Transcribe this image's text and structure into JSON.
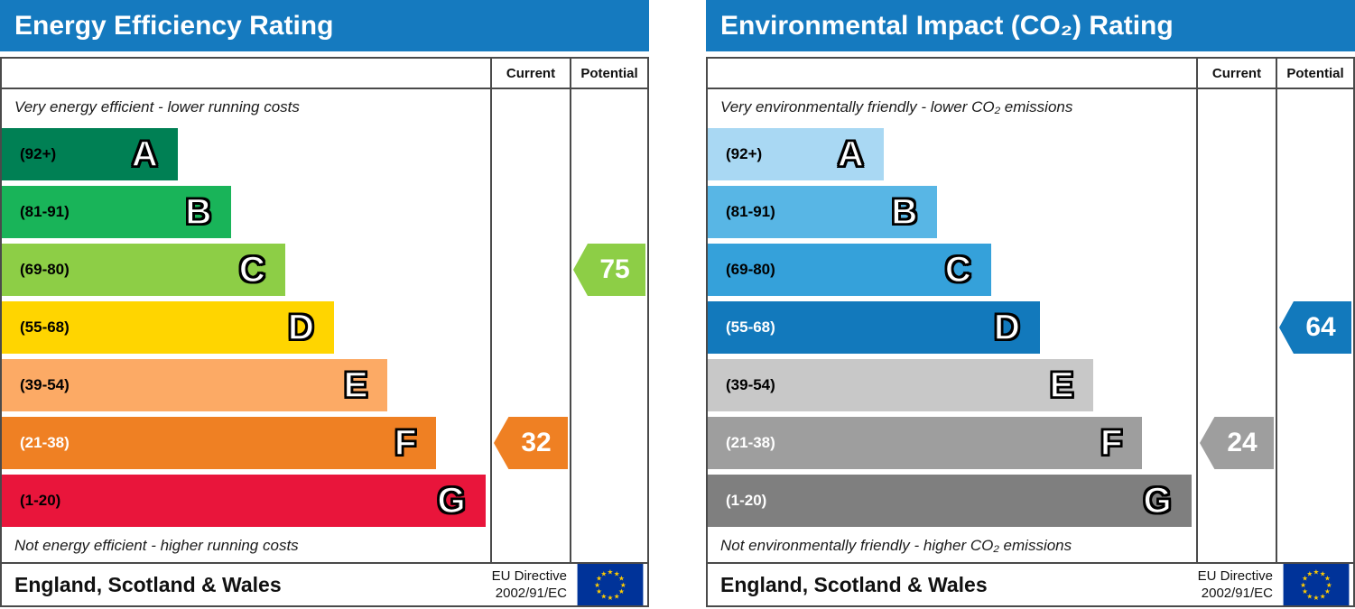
{
  "panels": [
    {
      "title": "Energy Efficiency Rating",
      "columns": {
        "current": "Current",
        "potential": "Potential"
      },
      "top_note": "Very energy efficient - lower running costs",
      "bottom_note": "Not energy efficient - higher running costs",
      "bands": [
        {
          "letter": "A",
          "range": "(92+)",
          "color": "#008054",
          "text": "#000000",
          "width": "36%"
        },
        {
          "letter": "B",
          "range": "(81-91)",
          "color": "#19b459",
          "text": "#000000",
          "width": "47%"
        },
        {
          "letter": "C",
          "range": "(69-80)",
          "color": "#8dce46",
          "text": "#000000",
          "width": "58%"
        },
        {
          "letter": "D",
          "range": "(55-68)",
          "color": "#ffd500",
          "text": "#000000",
          "width": "68%"
        },
        {
          "letter": "E",
          "range": "(39-54)",
          "color": "#fcaa65",
          "text": "#000000",
          "width": "79%"
        },
        {
          "letter": "F",
          "range": "(21-38)",
          "color": "#ef8023",
          "text": "#ffffff",
          "width": "89%"
        },
        {
          "letter": "G",
          "range": "(1-20)",
          "color": "#e9153b",
          "text": "#000000",
          "width": "99%"
        }
      ],
      "markers": {
        "current": {
          "value": "32",
          "row": 5,
          "color": "#ef8023"
        },
        "potential": {
          "value": "75",
          "row": 2,
          "color": "#8dce46"
        }
      },
      "footer": {
        "region": "England, Scotland & Wales",
        "directive_line1": "EU Directive",
        "directive_line2": "2002/91/EC"
      }
    },
    {
      "title": "Environmental Impact (CO₂) Rating",
      "columns": {
        "current": "Current",
        "potential": "Potential"
      },
      "top_note": "Very environmentally friendly - lower CO₂ emissions",
      "bottom_note": "Not environmentally friendly - higher CO₂ emissions",
      "bands": [
        {
          "letter": "A",
          "range": "(92+)",
          "color": "#a9d8f3",
          "text": "#000000",
          "width": "36%"
        },
        {
          "letter": "B",
          "range": "(81-91)",
          "color": "#58b6e5",
          "text": "#000000",
          "width": "47%"
        },
        {
          "letter": "C",
          "range": "(69-80)",
          "color": "#35a1da",
          "text": "#000000",
          "width": "58%"
        },
        {
          "letter": "D",
          "range": "(55-68)",
          "color": "#1279bc",
          "text": "#ffffff",
          "width": "68%"
        },
        {
          "letter": "E",
          "range": "(39-54)",
          "color": "#c8c8c8",
          "text": "#000000",
          "width": "79%"
        },
        {
          "letter": "F",
          "range": "(21-38)",
          "color": "#9e9e9e",
          "text": "#ffffff",
          "width": "89%"
        },
        {
          "letter": "G",
          "range": "(1-20)",
          "color": "#7f7f7f",
          "text": "#ffffff",
          "width": "99%"
        }
      ],
      "markers": {
        "current": {
          "value": "24",
          "row": 5,
          "color": "#9e9e9e"
        },
        "potential": {
          "value": "64",
          "row": 3,
          "color": "#1279bc"
        }
      },
      "footer": {
        "region": "England, Scotland & Wales",
        "directive_line1": "EU Directive",
        "directive_line2": "2002/91/EC"
      }
    }
  ],
  "theme": {
    "header_bg": "#157abf",
    "header_text": "#ffffff",
    "border": "#4a4a4a",
    "flag_bg": "#003399",
    "flag_star": "#ffcc00"
  },
  "chart_data": [
    {
      "type": "bar",
      "title": "Energy Efficiency Rating",
      "categories": [
        "A",
        "B",
        "C",
        "D",
        "E",
        "F",
        "G"
      ],
      "band_ranges": [
        "92+",
        "81-91",
        "69-80",
        "55-68",
        "39-54",
        "21-38",
        "1-20"
      ],
      "current": 32,
      "current_band": "F",
      "potential": 75,
      "potential_band": "C",
      "value_range": [
        1,
        100
      ],
      "annotations": [
        "Very energy efficient - lower running costs",
        "Not energy efficient - higher running costs",
        "England, Scotland & Wales",
        "EU Directive 2002/91/EC"
      ]
    },
    {
      "type": "bar",
      "title": "Environmental Impact (CO₂) Rating",
      "categories": [
        "A",
        "B",
        "C",
        "D",
        "E",
        "F",
        "G"
      ],
      "band_ranges": [
        "92+",
        "81-91",
        "69-80",
        "55-68",
        "39-54",
        "21-38",
        "1-20"
      ],
      "current": 24,
      "current_band": "F",
      "potential": 64,
      "potential_band": "D",
      "value_range": [
        1,
        100
      ],
      "annotations": [
        "Very environmentally friendly - lower CO₂ emissions",
        "Not environmentally friendly - higher CO₂ emissions",
        "England, Scotland & Wales",
        "EU Directive 2002/91/EC"
      ]
    }
  ]
}
